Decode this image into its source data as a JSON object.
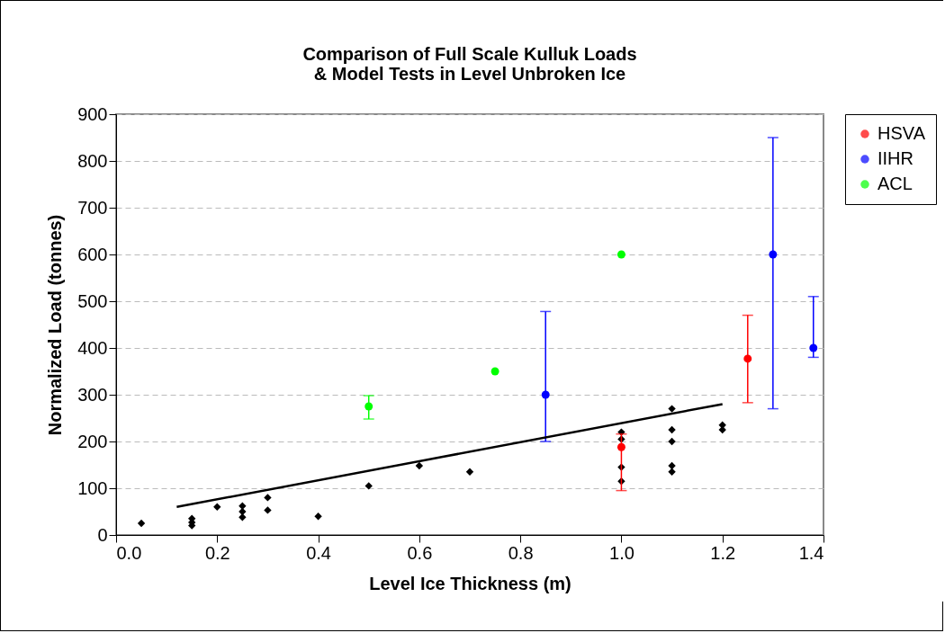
{
  "chart_data": {
    "type": "scatter",
    "title": "Comparison of Full Scale Kulluk Loads\n& Model Tests in Level Unbroken Ice",
    "xlabel": "Level Ice Thickness (m)",
    "ylabel": "Normalized Load (tonnes)",
    "xlim": [
      0,
      1.4
    ],
    "xticks": [
      {
        "value": 0,
        "label": "0.0"
      },
      0.2,
      0.4,
      0.6,
      0.8,
      {
        "value": 1,
        "label": "1.0"
      },
      1.2,
      1.4
    ],
    "ylim": [
      0,
      900
    ],
    "yticks": [
      0,
      100,
      200,
      300,
      400,
      500,
      600,
      700,
      800,
      900
    ],
    "grid": "y",
    "legend": "right",
    "series": [
      {
        "color": "#000000",
        "marker": "diamond",
        "x": [
          0.05,
          0.15,
          0.15,
          0.15,
          0.2,
          0.25,
          0.25,
          0.25,
          0.3,
          0.3,
          0.4,
          0.5,
          0.6,
          0.7,
          1.0,
          1.0,
          1.0,
          1.0,
          1.1,
          1.1,
          1.1,
          1.1,
          1.1,
          1.2,
          1.2
        ],
        "values": [
          25,
          20,
          27,
          35,
          60,
          38,
          50,
          62,
          53,
          80,
          40,
          105,
          148,
          135,
          220,
          205,
          145,
          115,
          270,
          225,
          200,
          148,
          135,
          235,
          225
        ]
      },
      {
        "name": "HSVA",
        "color": "#ff0000",
        "marker": "circle",
        "x": [
          1.0,
          1.25
        ],
        "values": [
          188,
          377
        ],
        "errors": [
          [
            95,
            216
          ],
          [
            283,
            470
          ]
        ]
      },
      {
        "name": "IIHR",
        "color": "#0000ff",
        "marker": "circle",
        "x": [
          0.85,
          1.3,
          1.38
        ],
        "values": [
          300,
          600,
          400
        ],
        "errors": [
          [
            200,
            478
          ],
          [
            270,
            850
          ],
          [
            380,
            510
          ]
        ]
      },
      {
        "name": "ACL",
        "color": "#00ff00",
        "marker": "circle",
        "x": [
          0.5,
          0.75,
          1.0
        ],
        "values": [
          275,
          350,
          600
        ],
        "errors": [
          [
            248,
            298
          ],
          null,
          null
        ]
      },
      {
        "type": "line",
        "color": "#000000",
        "x": [
          0.12,
          1.2
        ],
        "values": [
          60,
          280
        ]
      }
    ]
  }
}
